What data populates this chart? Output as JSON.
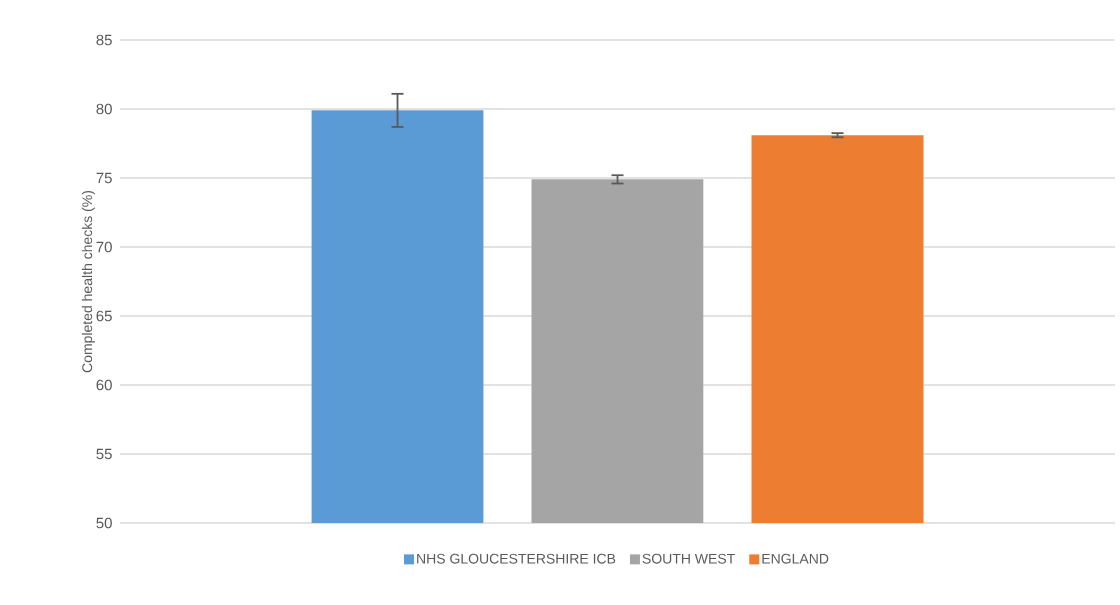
{
  "chart_data": {
    "type": "bar",
    "ylabel": "Completed health checks (%)",
    "categories": [
      null
    ],
    "series": [
      {
        "name": "NHS GLOUCESTERSHIRE ICB",
        "color": "#5b9bd5",
        "values": [
          79.9
        ],
        "errors": [
          1.2
        ]
      },
      {
        "name": "SOUTH WEST",
        "color": "#a5a5a5",
        "values": [
          74.9
        ],
        "errors": [
          0.3
        ]
      },
      {
        "name": "ENGLAND",
        "color": "#ed7d31",
        "values": [
          78.1
        ],
        "errors": [
          0.15
        ]
      }
    ],
    "ylim": [
      50,
      85
    ],
    "yticks": [
      50,
      55,
      60,
      65,
      70,
      75,
      80,
      85
    ],
    "grid": "y",
    "legend": "bottom"
  }
}
